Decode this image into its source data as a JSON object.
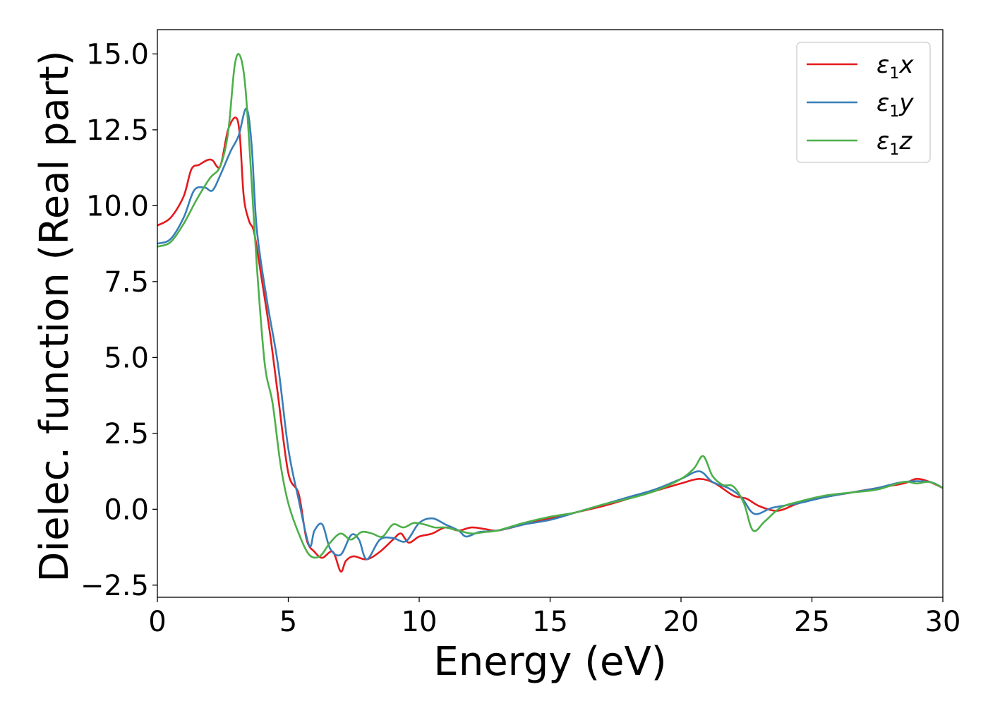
{
  "chart_data": {
    "type": "line",
    "title": "",
    "xlabel": "Energy (eV)",
    "ylabel": "Dielec. function (Real part)",
    "xlim": [
      0,
      30
    ],
    "ylim": [
      -2.9,
      15.8
    ],
    "xticks": [
      0,
      5,
      10,
      15,
      20,
      25,
      30
    ],
    "xtick_labels": [
      "0",
      "5",
      "10",
      "15",
      "20",
      "25",
      "30"
    ],
    "yticks": [
      -2.5,
      0.0,
      2.5,
      5.0,
      7.5,
      10.0,
      12.5,
      15.0
    ],
    "ytick_labels": [
      "−2.5",
      "0.0",
      "2.5",
      "5.0",
      "7.5",
      "10.0",
      "12.5",
      "15.0"
    ],
    "grid": false,
    "legend_position": "top-right",
    "series": [
      {
        "name": "ε₁x",
        "symbol": "ε",
        "subscript": "1",
        "component": "x",
        "color": "#e41a1c",
        "x": [
          0,
          0.5,
          1.0,
          1.3,
          1.6,
          1.9,
          2.1,
          2.4,
          2.7,
          3.0,
          3.15,
          3.3,
          3.5,
          3.7,
          4.0,
          4.3,
          4.6,
          5.0,
          5.4,
          5.7,
          6.0,
          6.3,
          6.7,
          7.0,
          7.2,
          7.5,
          8.0,
          8.5,
          9.0,
          9.3,
          9.6,
          10.0,
          10.5,
          11.0,
          11.5,
          12.0,
          12.5,
          13.0,
          14.0,
          15.0,
          16.0,
          17.0,
          18.0,
          19.0,
          20.0,
          20.7,
          21.3,
          22.0,
          22.5,
          23.0,
          23.7,
          24.5,
          25.5,
          26.5,
          27.5,
          28.5,
          29.0,
          29.5,
          30.0
        ],
        "y": [
          9.35,
          9.6,
          10.3,
          11.2,
          11.35,
          11.5,
          11.5,
          11.3,
          12.5,
          12.9,
          12.3,
          10.3,
          9.5,
          9.1,
          7.5,
          5.8,
          3.8,
          1.2,
          0.5,
          -1.0,
          -1.4,
          -1.6,
          -1.4,
          -2.05,
          -1.7,
          -1.55,
          -1.65,
          -1.4,
          -1.0,
          -0.8,
          -1.1,
          -0.9,
          -0.8,
          -0.6,
          -0.7,
          -0.6,
          -0.65,
          -0.7,
          -0.5,
          -0.3,
          -0.1,
          0.1,
          0.35,
          0.6,
          0.85,
          1.0,
          0.85,
          0.45,
          0.35,
          0.1,
          -0.05,
          0.2,
          0.4,
          0.55,
          0.7,
          0.85,
          1.0,
          0.9,
          0.7
        ]
      },
      {
        "name": "ε₁y",
        "symbol": "ε",
        "subscript": "1",
        "component": "y",
        "color": "#377eb8",
        "x": [
          0,
          0.5,
          1.0,
          1.4,
          1.8,
          2.1,
          2.4,
          2.8,
          3.1,
          3.4,
          3.6,
          3.8,
          4.2,
          4.6,
          5.0,
          5.4,
          5.8,
          6.0,
          6.3,
          6.6,
          7.0,
          7.4,
          7.7,
          8.0,
          8.5,
          9.0,
          9.5,
          10.0,
          10.5,
          11.0,
          11.5,
          11.8,
          12.3,
          13.0,
          14.0,
          15.0,
          16.0,
          17.0,
          18.0,
          19.0,
          20.0,
          20.7,
          21.2,
          21.8,
          22.3,
          22.8,
          23.5,
          24.5,
          25.5,
          26.5,
          27.5,
          28.5,
          29.5,
          30.0
        ],
        "y": [
          8.75,
          8.9,
          9.6,
          10.5,
          10.6,
          10.5,
          11.0,
          11.8,
          12.3,
          13.2,
          12.0,
          9.2,
          6.8,
          4.8,
          2.0,
          0.3,
          -1.2,
          -0.7,
          -0.5,
          -1.3,
          -1.5,
          -0.85,
          -1.0,
          -1.65,
          -1.0,
          -0.95,
          -1.05,
          -0.45,
          -0.3,
          -0.5,
          -0.7,
          -0.9,
          -0.75,
          -0.7,
          -0.5,
          -0.35,
          -0.1,
          0.15,
          0.4,
          0.65,
          1.0,
          1.25,
          0.9,
          0.7,
          0.4,
          -0.15,
          0.05,
          0.2,
          0.4,
          0.55,
          0.7,
          0.9,
          0.9,
          0.7
        ]
      },
      {
        "name": "ε₁z",
        "symbol": "ε",
        "subscript": "1",
        "component": "z",
        "color": "#4daf4a",
        "x": [
          0,
          0.5,
          1.0,
          1.5,
          2.0,
          2.4,
          2.7,
          2.95,
          3.15,
          3.35,
          3.55,
          3.8,
          4.1,
          4.4,
          4.7,
          5.0,
          5.4,
          5.8,
          6.2,
          6.6,
          7.0,
          7.4,
          7.8,
          8.2,
          8.6,
          9.0,
          9.4,
          9.8,
          10.2,
          10.6,
          11.0,
          11.5,
          12.0,
          12.5,
          13.0,
          14.0,
          15.0,
          16.0,
          17.0,
          18.0,
          19.0,
          20.0,
          20.5,
          20.85,
          21.2,
          21.6,
          22.0,
          22.4,
          22.75,
          23.2,
          23.8,
          24.5,
          25.5,
          26.5,
          27.5,
          28.5,
          29.0,
          29.5,
          30.0
        ],
        "y": [
          8.65,
          8.8,
          9.4,
          10.2,
          10.9,
          11.3,
          12.4,
          14.6,
          14.95,
          14.0,
          11.5,
          8.0,
          4.8,
          3.5,
          1.5,
          0.2,
          -0.8,
          -1.5,
          -1.55,
          -1.1,
          -0.8,
          -1.0,
          -0.75,
          -0.8,
          -0.9,
          -0.5,
          -0.6,
          -0.45,
          -0.5,
          -0.6,
          -0.6,
          -0.7,
          -0.8,
          -0.75,
          -0.7,
          -0.45,
          -0.25,
          -0.1,
          0.15,
          0.35,
          0.6,
          1.0,
          1.35,
          1.75,
          1.1,
          0.8,
          0.75,
          0.2,
          -0.7,
          -0.4,
          0.05,
          0.25,
          0.45,
          0.55,
          0.65,
          0.9,
          0.85,
          0.9,
          0.7
        ]
      }
    ]
  }
}
